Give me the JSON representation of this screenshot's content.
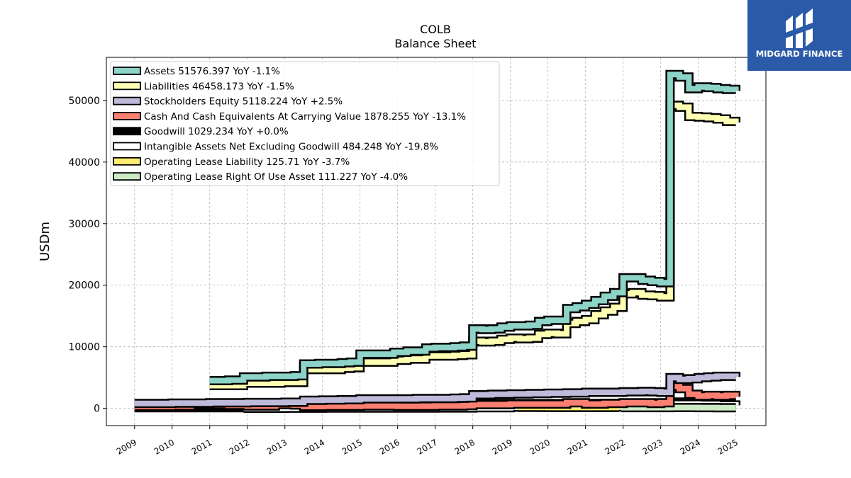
{
  "chart_data": {
    "type": "line",
    "title": "COLB",
    "subtitle": "Balance  Sheet",
    "ylabel": "USDm",
    "xlabel": "",
    "ylim": [
      -2800,
      57000
    ],
    "xlim": [
      2008.25,
      2025.8
    ],
    "yticks": [
      0,
      10000,
      20000,
      30000,
      40000,
      50000
    ],
    "xticks": [
      "2009",
      "2010",
      "2011",
      "2012",
      "2013",
      "2014",
      "2015",
      "2016",
      "2017",
      "2018",
      "2019",
      "2020",
      "2021",
      "2022",
      "2023",
      "2024",
      "2025"
    ],
    "grid": true,
    "legend_position": "top-left",
    "series": [
      {
        "name": "Assets  51576.397 YoY -1.1%",
        "color": "#8dd3c7",
        "x": [
          2011.0,
          2011.5,
          2011.9,
          2012.5,
          2012.9,
          2013.25,
          2013.5,
          2013.9,
          2014.5,
          2014.75,
          2015.0,
          2015.5,
          2015.9,
          2016.25,
          2016.75,
          2017.0,
          2017.5,
          2017.75,
          2018.0,
          2018.25,
          2018.5,
          2018.75,
          2019.0,
          2019.25,
          2019.5,
          2019.75,
          2020.0,
          2020.25,
          2020.5,
          2020.75,
          2021.0,
          2021.25,
          2021.5,
          2021.75,
          2022.0,
          2022.25,
          2022.5,
          2022.75,
          2023.0,
          2023.25,
          2023.5,
          2023.75,
          2024.0,
          2024.25,
          2024.5,
          2024.75,
          2025.0
        ],
        "values": [
          4500,
          4600,
          5100,
          5200,
          5200,
          5300,
          7200,
          7300,
          7400,
          7500,
          8800,
          8800,
          9100,
          9300,
          9800,
          9900,
          10000,
          10100,
          12900,
          12800,
          12900,
          13200,
          13400,
          13400,
          13500,
          14100,
          14300,
          14300,
          16200,
          16500,
          16900,
          17500,
          18200,
          18800,
          21200,
          21200,
          20800,
          20600,
          20400,
          54200,
          53800,
          51900,
          52200,
          52100,
          51900,
          51800,
          51576
        ]
      },
      {
        "name": "Liabilities  46458.173 YoY -1.5%",
        "color": "#ffffb3",
        "x": [
          2011.0,
          2011.5,
          2011.9,
          2012.5,
          2012.9,
          2013.25,
          2013.5,
          2013.9,
          2014.5,
          2014.75,
          2015.0,
          2015.5,
          2015.9,
          2016.25,
          2016.75,
          2017.0,
          2017.5,
          2017.75,
          2018.0,
          2018.25,
          2018.5,
          2018.75,
          2019.0,
          2019.25,
          2019.5,
          2019.75,
          2020.0,
          2020.25,
          2020.5,
          2020.75,
          2021.0,
          2021.25,
          2021.5,
          2021.75,
          2022.0,
          2022.25,
          2022.5,
          2022.75,
          2023.0,
          2023.25,
          2023.5,
          2023.75,
          2024.0,
          2024.25,
          2024.5,
          2024.75,
          2025.0
        ],
        "values": [
          3700,
          3700,
          4100,
          4100,
          4200,
          4200,
          6300,
          6300,
          6500,
          6600,
          7500,
          7500,
          7800,
          8000,
          8500,
          8500,
          8600,
          8700,
          10900,
          10800,
          10900,
          11200,
          11400,
          11300,
          11400,
          12000,
          12200,
          12100,
          13800,
          14100,
          14400,
          15200,
          15800,
          16400,
          18600,
          18800,
          18400,
          18300,
          18100,
          49200,
          48900,
          47400,
          47300,
          47200,
          47000,
          46600,
          46458
        ]
      },
      {
        "name": "Stockholders Equity  5118.224 YoY +2.5%",
        "color": "#bebada",
        "x": [
          2009.0,
          2010.0,
          2011.0,
          2012.0,
          2013.0,
          2013.5,
          2014.0,
          2014.5,
          2015.0,
          2015.5,
          2016.0,
          2016.5,
          2017.0,
          2017.5,
          2017.75,
          2018.0,
          2018.5,
          2019.0,
          2019.5,
          2020.0,
          2020.5,
          2021.0,
          2021.5,
          2022.0,
          2022.5,
          2022.75,
          2023.0,
          2023.25,
          2023.5,
          2023.75,
          2024.0,
          2024.25,
          2024.5,
          2024.75,
          2025.0
        ],
        "values": [
          800,
          850,
          900,
          950,
          1000,
          1300,
          1350,
          1400,
          1550,
          1550,
          1550,
          1600,
          1600,
          1650,
          1700,
          2200,
          2300,
          2350,
          2400,
          2450,
          2500,
          2600,
          2600,
          2700,
          2750,
          2700,
          2600,
          5000,
          4700,
          4800,
          5000,
          5100,
          5200,
          5200,
          5118
        ]
      },
      {
        "name": "Cash And Cash Equivalents At Carrying Value  1878.255 YoY -13.1%",
        "color": "#fb8072",
        "x": [
          2009.0,
          2010.0,
          2010.5,
          2011.0,
          2011.5,
          2012.0,
          2012.75,
          2013.25,
          2013.5,
          2014.0,
          2015.0,
          2016.0,
          2017.0,
          2017.75,
          2018.0,
          2019.0,
          2020.0,
          2020.5,
          2021.0,
          2021.5,
          2022.0,
          2022.5,
          2022.75,
          2023.0,
          2023.25,
          2023.5,
          2023.75,
          2024.0,
          2024.25,
          2024.5,
          2024.75,
          2025.0
        ],
        "values": [
          300,
          400,
          700,
          600,
          500,
          400,
          600,
          550,
          300,
          350,
          400,
          350,
          400,
          450,
          600,
          700,
          700,
          900,
          700,
          800,
          900,
          900,
          800,
          900,
          3600,
          3200,
          2300,
          2000,
          2100,
          2000,
          2100,
          1878
        ]
      },
      {
        "name": "Goodwill  1029.234 YoY +0.0%",
        "color": "#000000",
        "x": [
          2009.0,
          2013.5,
          2014.0,
          2015.0,
          2016.0,
          2017.0,
          2017.75,
          2018.0,
          2019.0,
          2020.0,
          2021.0,
          2022.0,
          2023.0,
          2023.25,
          2024.0,
          2025.0
        ],
        "values": [
          100,
          100,
          380,
          380,
          380,
          380,
          380,
          780,
          780,
          780,
          800,
          820,
          820,
          1029,
          1029,
          1029
        ]
      },
      {
        "name": "Intangible Assets Net Excluding Goodwill  484.248 YoY -19.8%",
        "color": "#ffffff",
        "x": [
          2011.9,
          2013.0,
          2014.0,
          2015.0,
          2016.0,
          2017.0,
          2017.75,
          2018.0,
          2019.0,
          2020.0,
          2021.0,
          2022.0,
          2023.0,
          2023.25,
          2024.0,
          2024.5,
          2025.0
        ],
        "values": [
          20,
          30,
          40,
          50,
          50,
          60,
          60,
          100,
          200,
          250,
          230,
          230,
          220,
          700,
          650,
          550,
          484
        ]
      },
      {
        "name": "Operating Lease Liability  125.71 YoY -3.7%",
        "color": "#ffed6f",
        "x": [
          2019.2,
          2019.5,
          2020.0,
          2021.0,
          2021.9
        ],
        "values": [
          150,
          150,
          140,
          140,
          130
        ]
      },
      {
        "name": "Operating Lease Right Of Use Asset  111.227 YoY -4.0%",
        "color": "#ccebc5",
        "x": [
          2021.95,
          2022.5,
          2023.0,
          2023.25,
          2024.0,
          2024.5,
          2025.0
        ],
        "values": [
          120,
          120,
          120,
          130,
          125,
          115,
          111
        ]
      }
    ]
  },
  "brand": {
    "name": "MIDGARD FINANCE",
    "bg_color": "#2a5aa8"
  }
}
